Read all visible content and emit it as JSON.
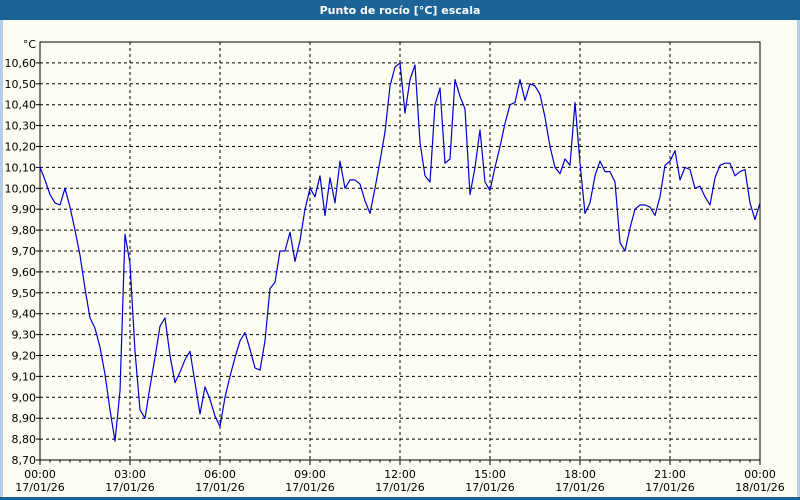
{
  "window": {
    "title": "Punto de rocío [°C] escala"
  },
  "colors": {
    "titlebar_bg": "#1c6497",
    "frame_light": "#b2cfe6",
    "frame_dark": "#1c6497",
    "plot_bg": "#fdfdf4",
    "grid": "#000000",
    "axis_text": "#000000",
    "line": "#0000cc"
  },
  "chart_data": {
    "type": "line",
    "title": "Punto de rocío [°C] escala",
    "ylabel": "°C",
    "xlabel": "",
    "grid": true,
    "legend": "none",
    "ylim": [
      8.7,
      10.7
    ],
    "yticks": [
      10.6,
      10.5,
      10.4,
      10.3,
      10.2,
      10.1,
      10.0,
      9.9,
      9.8,
      9.7,
      9.6,
      9.5,
      9.4,
      9.3,
      9.2,
      9.1,
      9.0,
      8.9,
      8.8,
      8.7
    ],
    "ytick_labels": [
      "10,60",
      "10,50",
      "10,40",
      "10,30",
      "10,20",
      "10,10",
      "10,00",
      "9,90",
      "9,80",
      "9,70",
      "9,60",
      "9,50",
      "9,40",
      "9,30",
      "9,20",
      "9,10",
      "9,00",
      "8,90",
      "8,80",
      "8,70"
    ],
    "x_total_hours": 24,
    "xticks": [
      {
        "hour": 0,
        "time": "00:00",
        "date": "17/01/26"
      },
      {
        "hour": 3,
        "time": "03:00",
        "date": "17/01/26"
      },
      {
        "hour": 6,
        "time": "06:00",
        "date": "17/01/26"
      },
      {
        "hour": 9,
        "time": "09:00",
        "date": "17/01/26"
      },
      {
        "hour": 12,
        "time": "12:00",
        "date": "17/01/26"
      },
      {
        "hour": 15,
        "time": "15:00",
        "date": "17/01/26"
      },
      {
        "hour": 18,
        "time": "18:00",
        "date": "17/01/26"
      },
      {
        "hour": 21,
        "time": "21:00",
        "date": "17/01/26"
      },
      {
        "hour": 24,
        "time": "00:00",
        "date": "18/01/26"
      }
    ],
    "sample_interval_minutes": 10,
    "series": [
      {
        "name": "Punto de rocío",
        "unit": "°C",
        "values": [
          10.1,
          10.04,
          9.97,
          9.93,
          9.92,
          10.0,
          9.91,
          9.8,
          9.68,
          9.52,
          9.38,
          9.33,
          9.24,
          9.11,
          8.94,
          8.79,
          9.03,
          9.78,
          9.64,
          9.22,
          8.94,
          8.9,
          9.05,
          9.19,
          9.34,
          9.38,
          9.2,
          9.07,
          9.12,
          9.18,
          9.22,
          9.07,
          8.92,
          9.05,
          8.99,
          8.91,
          8.86,
          9.0,
          9.1,
          9.19,
          9.27,
          9.31,
          9.23,
          9.14,
          9.13,
          9.27,
          9.52,
          9.55,
          9.7,
          9.7,
          9.79,
          9.65,
          9.75,
          9.9,
          10.0,
          9.96,
          10.06,
          9.87,
          10.05,
          9.93,
          10.13,
          10.0,
          10.04,
          10.04,
          10.02,
          9.94,
          9.88,
          10.0,
          10.13,
          10.27,
          10.49,
          10.58,
          10.6,
          10.36,
          10.52,
          10.59,
          10.22,
          10.06,
          10.03,
          10.4,
          10.48,
          10.12,
          10.14,
          10.52,
          10.44,
          10.38,
          9.97,
          10.1,
          10.28,
          10.03,
          9.99,
          10.1,
          10.2,
          10.31,
          10.4,
          10.41,
          10.52,
          10.42,
          10.5,
          10.49,
          10.45,
          10.34,
          10.2,
          10.1,
          10.07,
          10.14,
          10.11,
          10.41,
          10.12,
          9.88,
          9.93,
          10.06,
          10.13,
          10.08,
          10.08,
          10.03,
          9.74,
          9.7,
          9.81,
          9.9,
          9.92,
          9.92,
          9.91,
          9.87,
          9.96,
          10.11,
          10.13,
          10.18,
          10.04,
          10.1,
          10.09,
          10.0,
          10.01,
          9.96,
          9.92,
          10.05,
          10.11,
          10.12,
          10.12,
          10.06,
          10.08,
          10.09,
          9.93,
          9.85,
          9.93
        ]
      }
    ]
  }
}
